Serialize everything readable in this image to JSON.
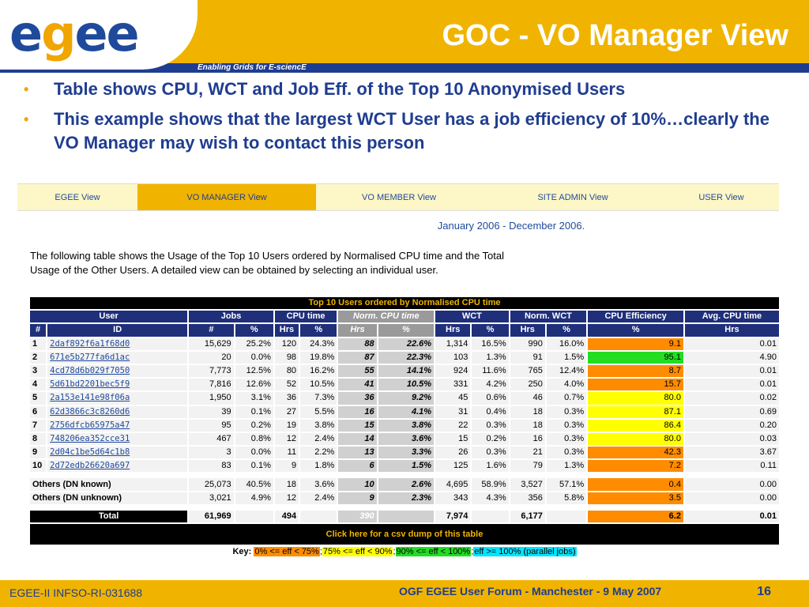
{
  "header": {
    "logo_e1": "e",
    "logo_g": "g",
    "logo_e2": "ee",
    "tagline": "Enabling Grids for E-sciencE",
    "title": "GOC - VO Manager View"
  },
  "bullets": [
    "Table shows CPU, WCT and Job Eff. of the Top 10 Anonymised Users",
    "This example shows that the largest WCT User has a job efficiency of 10%…clearly the VO Manager may wish to contact this person"
  ],
  "nav": {
    "tabs": [
      "EGEE View",
      "VO MANAGER View",
      "VO MEMBER View",
      "SITE ADMIN View",
      "USER View"
    ],
    "active": "VO MANAGER View"
  },
  "period": "January 2006 - December 2006.",
  "intro": "The following table shows the Usage of the Top 10 Users ordered by Normalised CPU time and the Total Usage of the Other Users. A detailed view can be obtained by selecting an individual user.",
  "table": {
    "caption": "Top 10 Users ordered by Normalised CPU time",
    "group_headers": [
      "User",
      "Jobs",
      "CPU time",
      "Norm. CPU time",
      "WCT",
      "Norm. WCT",
      "CPU Efficiency",
      "Avg. CPU time"
    ],
    "sub_headers": [
      "#",
      "ID",
      "#",
      "%",
      "Hrs",
      "%",
      "Hrs",
      "%",
      "Hrs",
      "%",
      "Hrs",
      "%",
      "%",
      "Hrs"
    ],
    "rows": [
      {
        "rank": "1",
        "id": "2daf892f6a1f68d0",
        "jobs": "15,629",
        "jobs_pct": "25.2%",
        "cpu": "120",
        "cpu_pct": "24.3%",
        "ncpu": "88",
        "ncpu_pct": "22.6%",
        "wct": "1,314",
        "wct_pct": "16.5%",
        "nwct": "990",
        "nwct_pct": "16.0%",
        "eff": "9.1",
        "avg": "0.01",
        "eff_color": "#ff8c00"
      },
      {
        "rank": "2",
        "id": "671e5b277fa6d1ac",
        "jobs": "20",
        "jobs_pct": "0.0%",
        "cpu": "98",
        "cpu_pct": "19.8%",
        "ncpu": "87",
        "ncpu_pct": "22.3%",
        "wct": "103",
        "wct_pct": "1.3%",
        "nwct": "91",
        "nwct_pct": "1.5%",
        "eff": "95.1",
        "avg": "4.90",
        "eff_color": "#22dd22"
      },
      {
        "rank": "3",
        "id": "4cd78d6b029f7050",
        "jobs": "7,773",
        "jobs_pct": "12.5%",
        "cpu": "80",
        "cpu_pct": "16.2%",
        "ncpu": "55",
        "ncpu_pct": "14.1%",
        "wct": "924",
        "wct_pct": "11.6%",
        "nwct": "765",
        "nwct_pct": "12.4%",
        "eff": "8.7",
        "avg": "0.01",
        "eff_color": "#ff8c00"
      },
      {
        "rank": "4",
        "id": "5d61bd2201bec5f9",
        "jobs": "7,816",
        "jobs_pct": "12.6%",
        "cpu": "52",
        "cpu_pct": "10.5%",
        "ncpu": "41",
        "ncpu_pct": "10.5%",
        "wct": "331",
        "wct_pct": "4.2%",
        "nwct": "250",
        "nwct_pct": "4.0%",
        "eff": "15.7",
        "avg": "0.01",
        "eff_color": "#ff8c00"
      },
      {
        "rank": "5",
        "id": "2a153e141e98f06a",
        "jobs": "1,950",
        "jobs_pct": "3.1%",
        "cpu": "36",
        "cpu_pct": "7.3%",
        "ncpu": "36",
        "ncpu_pct": "9.2%",
        "wct": "45",
        "wct_pct": "0.6%",
        "nwct": "46",
        "nwct_pct": "0.7%",
        "eff": "80.0",
        "avg": "0.02",
        "eff_color": "#ffff00"
      },
      {
        "rank": "6",
        "id": "62d3866c3c8260d6",
        "jobs": "39",
        "jobs_pct": "0.1%",
        "cpu": "27",
        "cpu_pct": "5.5%",
        "ncpu": "16",
        "ncpu_pct": "4.1%",
        "wct": "31",
        "wct_pct": "0.4%",
        "nwct": "18",
        "nwct_pct": "0.3%",
        "eff": "87.1",
        "avg": "0.69",
        "eff_color": "#ffff00"
      },
      {
        "rank": "7",
        "id": "2756dfcb65975a47",
        "jobs": "95",
        "jobs_pct": "0.2%",
        "cpu": "19",
        "cpu_pct": "3.8%",
        "ncpu": "15",
        "ncpu_pct": "3.8%",
        "wct": "22",
        "wct_pct": "0.3%",
        "nwct": "18",
        "nwct_pct": "0.3%",
        "eff": "86.4",
        "avg": "0.20",
        "eff_color": "#ffff00"
      },
      {
        "rank": "8",
        "id": "748206ea352cce31",
        "jobs": "467",
        "jobs_pct": "0.8%",
        "cpu": "12",
        "cpu_pct": "2.4%",
        "ncpu": "14",
        "ncpu_pct": "3.6%",
        "wct": "15",
        "wct_pct": "0.2%",
        "nwct": "16",
        "nwct_pct": "0.3%",
        "eff": "80.0",
        "avg": "0.03",
        "eff_color": "#ffff00"
      },
      {
        "rank": "9",
        "id": "2d04c1be5d64c1b8",
        "jobs": "3",
        "jobs_pct": "0.0%",
        "cpu": "11",
        "cpu_pct": "2.2%",
        "ncpu": "13",
        "ncpu_pct": "3.3%",
        "wct": "26",
        "wct_pct": "0.3%",
        "nwct": "21",
        "nwct_pct": "0.3%",
        "eff": "42.3",
        "avg": "3.67",
        "eff_color": "#ff8c00"
      },
      {
        "rank": "10",
        "id": "2d72edb26620a697",
        "jobs": "83",
        "jobs_pct": "0.1%",
        "cpu": "9",
        "cpu_pct": "1.8%",
        "ncpu": "6",
        "ncpu_pct": "1.5%",
        "wct": "125",
        "wct_pct": "1.6%",
        "nwct": "79",
        "nwct_pct": "1.3%",
        "eff": "7.2",
        "avg": "0.11",
        "eff_color": "#ff8c00"
      }
    ],
    "others": [
      {
        "label": "Others (DN known)",
        "jobs": "25,073",
        "jobs_pct": "40.5%",
        "cpu": "18",
        "cpu_pct": "3.6%",
        "ncpu": "10",
        "ncpu_pct": "2.6%",
        "wct": "4,695",
        "wct_pct": "58.9%",
        "nwct": "3,527",
        "nwct_pct": "57.1%",
        "eff": "0.4",
        "avg": "0.00",
        "eff_color": "#ff8c00"
      },
      {
        "label": "Others (DN unknown)",
        "jobs": "3,021",
        "jobs_pct": "4.9%",
        "cpu": "12",
        "cpu_pct": "2.4%",
        "ncpu": "9",
        "ncpu_pct": "2.3%",
        "wct": "343",
        "wct_pct": "4.3%",
        "nwct": "356",
        "nwct_pct": "5.8%",
        "eff": "3.5",
        "avg": "0.00",
        "eff_color": "#ff8c00"
      }
    ],
    "total": {
      "label": "Total",
      "jobs": "61,969",
      "cpu": "494",
      "ncpu": "390",
      "wct": "7,974",
      "nwct": "6,177",
      "eff": "6.2",
      "avg": "0.01",
      "eff_color": "#ff8c00"
    },
    "csv_link": "Click here for a csv dump of this table",
    "key": {
      "label": "Key:",
      "items": [
        {
          "text": "0% <= eff < 75%",
          "color": "#ff8c00"
        },
        {
          "text": "75% <= eff < 90%",
          "color": "#ffff00"
        },
        {
          "text": "90% <= eff < 100%",
          "color": "#22dd22"
        },
        {
          "text": "eff >= 100% (parallel jobs)",
          "color": "#00e5ff"
        }
      ],
      "sep": ";"
    }
  },
  "footer": {
    "left": "EGEE-II INFSO-RI-031688",
    "middle": "OGF EGEE User Forum - Manchester - 9 May 2007",
    "page": "16"
  },
  "colors": {
    "brand_blue": "#1f3d90",
    "brand_orange": "#f0b400"
  }
}
